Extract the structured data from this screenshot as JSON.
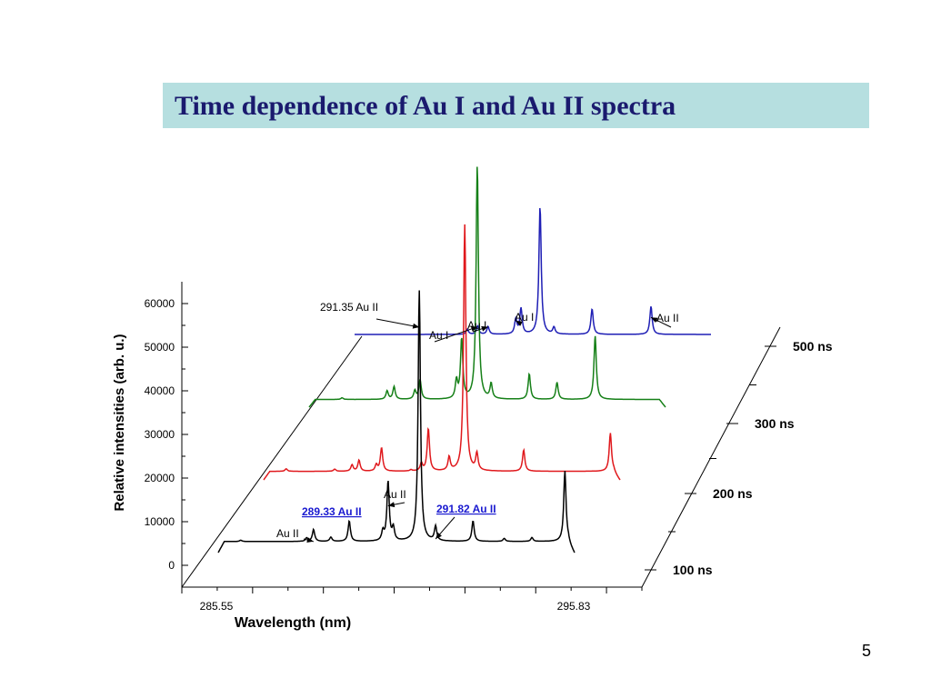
{
  "slide": {
    "title": "Time  dependence of  Au I and Au II spectra",
    "page_number": "5"
  },
  "chart_data": {
    "type": "line",
    "style": "3d-waterfall",
    "xlabel": "Wavelength (nm)",
    "ylabel": "Relative intensities (arb. u.)",
    "x_ticks": [
      "285.55",
      "295.83"
    ],
    "x_range": [
      285.55,
      295.83
    ],
    "y_ticks": [
      0,
      10000,
      20000,
      30000,
      40000,
      50000,
      60000
    ],
    "ylim": [
      0,
      60000
    ],
    "depth_labels": [
      "100 ns",
      "200 ns",
      "300 ns",
      "500 ns"
    ],
    "series": [
      {
        "name": "100 ns",
        "color": "#000000",
        "baseline": 2600,
        "peaks": [
          {
            "x": 286.2,
            "y": 300
          },
          {
            "x": 288.1,
            "y": 800
          },
          {
            "x": 288.3,
            "y": 2800
          },
          {
            "x": 288.8,
            "y": 1000
          },
          {
            "x": 289.33,
            "y": 4800
          },
          {
            "x": 290.3,
            "y": 2200
          },
          {
            "x": 290.45,
            "y": 14000
          },
          {
            "x": 290.6,
            "y": 3000
          },
          {
            "x": 291.35,
            "y": 59000
          },
          {
            "x": 291.82,
            "y": 3400
          },
          {
            "x": 292.9,
            "y": 4800
          },
          {
            "x": 293.8,
            "y": 700
          },
          {
            "x": 294.6,
            "y": 900
          },
          {
            "x": 295.55,
            "y": 16600
          }
        ]
      },
      {
        "name": "200 ns",
        "color": "#e0191d",
        "baseline": 2000,
        "peaks": [
          {
            "x": 286.2,
            "y": 600
          },
          {
            "x": 287.6,
            "y": 500
          },
          {
            "x": 288.1,
            "y": 1500
          },
          {
            "x": 288.3,
            "y": 2600
          },
          {
            "x": 288.8,
            "y": 1500
          },
          {
            "x": 288.95,
            "y": 5500
          },
          {
            "x": 289.8,
            "y": 300
          },
          {
            "x": 290.1,
            "y": 1800
          },
          {
            "x": 290.3,
            "y": 10000
          },
          {
            "x": 290.9,
            "y": 3200
          },
          {
            "x": 291.35,
            "y": 58000
          },
          {
            "x": 291.7,
            "y": 4000
          },
          {
            "x": 293.05,
            "y": 5000
          },
          {
            "x": 295.55,
            "y": 9000
          }
        ]
      },
      {
        "name": "300 ns",
        "color": "#168018",
        "baseline": 1800,
        "peaks": [
          {
            "x": 286.5,
            "y": 400
          },
          {
            "x": 287.8,
            "y": 2000
          },
          {
            "x": 288.0,
            "y": 3000
          },
          {
            "x": 288.6,
            "y": 2000
          },
          {
            "x": 288.75,
            "y": 4600
          },
          {
            "x": 289.8,
            "y": 4200
          },
          {
            "x": 289.95,
            "y": 14000
          },
          {
            "x": 290.4,
            "y": 55000
          },
          {
            "x": 290.8,
            "y": 3500
          },
          {
            "x": 291.9,
            "y": 6000
          },
          {
            "x": 292.7,
            "y": 4000
          },
          {
            "x": 293.8,
            "y": 15000
          }
        ]
      },
      {
        "name": "500 ns",
        "color": "#1f1fb5",
        "baseline": 0,
        "peaks": [
          {
            "x": 288.8,
            "y": 1200
          },
          {
            "x": 289.1,
            "y": 2000
          },
          {
            "x": 289.4,
            "y": 1800
          },
          {
            "x": 290.2,
            "y": 3500
          },
          {
            "x": 290.35,
            "y": 6000
          },
          {
            "x": 290.9,
            "y": 30000
          },
          {
            "x": 291.3,
            "y": 1600
          },
          {
            "x": 292.4,
            "y": 6000
          },
          {
            "x": 294.1,
            "y": 6600
          }
        ]
      }
    ],
    "annotations": {
      "a1": {
        "text": "291.35 Au II",
        "target_series": 0,
        "target_x": 291.35,
        "target_y": 53000
      },
      "a2": {
        "text": "Au I",
        "target_series": 3,
        "target_x": 289.1,
        "target_y": 1800
      },
      "a3": {
        "text": "Au I",
        "target_series": 3,
        "target_x": 289.4,
        "target_y": 1800
      },
      "a4": {
        "text": "Au I",
        "target_series": 3,
        "target_x": 290.2,
        "target_y": 3200
      },
      "a5": {
        "text": "Au II",
        "target_series": 3,
        "target_x": 294.1,
        "target_y": 4000
      },
      "a6": {
        "text": "Au II",
        "target_series": 0,
        "target_x": 290.45,
        "target_y": 11000
      },
      "a7": {
        "text": "289.33 Au II",
        "target_series": 0,
        "target_x": 289.33,
        "target_y": 4500,
        "color": "#1a1ad0"
      },
      "a8": {
        "text": "291.82 Au II",
        "target_series": 0,
        "target_x": 291.82,
        "target_y": 3200,
        "color": "#1a1ad0"
      },
      "a9": {
        "text": "Au II",
        "target_series": 0,
        "target_x": 288.3,
        "target_y": 2600
      }
    }
  }
}
